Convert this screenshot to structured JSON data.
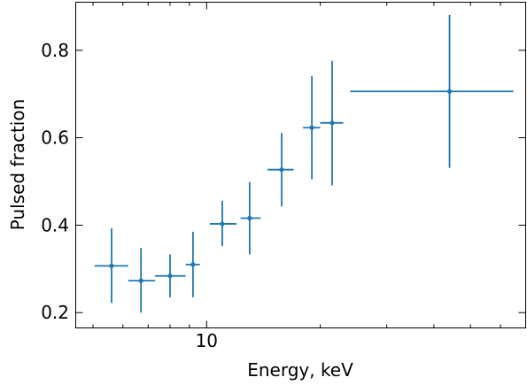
{
  "chart_data": {
    "type": "scatter",
    "title": "",
    "xlabel": "Energy, keV",
    "ylabel": "Pulsed fraction",
    "xscale": "log",
    "xlim": [
      4.5,
      70
    ],
    "ylim": [
      0.165,
      0.91
    ],
    "grid": false,
    "legend": "none",
    "color": "#1f77b4",
    "x_major_ticks": [
      10
    ],
    "x_major_tick_labels": [
      "10"
    ],
    "x_minor_ticks": [
      5,
      6,
      7,
      8,
      9,
      20,
      30,
      40,
      50,
      60
    ],
    "y_ticks": [
      0.2,
      0.4,
      0.6,
      0.8
    ],
    "y_tick_labels": [
      "0.2",
      "0.4",
      "0.6",
      "0.8"
    ],
    "points": [
      {
        "x": 5.6,
        "x_low": 5.05,
        "x_high": 6.2,
        "y": 0.307,
        "y_low": 0.222,
        "y_high": 0.393
      },
      {
        "x": 6.7,
        "x_low": 6.2,
        "x_high": 7.3,
        "y": 0.273,
        "y_low": 0.2,
        "y_high": 0.348
      },
      {
        "x": 8.0,
        "x_low": 7.3,
        "x_high": 8.8,
        "y": 0.284,
        "y_low": 0.235,
        "y_high": 0.333
      },
      {
        "x": 9.2,
        "x_low": 8.8,
        "x_high": 9.6,
        "y": 0.31,
        "y_low": 0.235,
        "y_high": 0.385
      },
      {
        "x": 11.0,
        "x_low": 10.2,
        "x_high": 12.0,
        "y": 0.403,
        "y_low": 0.352,
        "y_high": 0.456
      },
      {
        "x": 13.0,
        "x_low": 12.3,
        "x_high": 13.9,
        "y": 0.416,
        "y_low": 0.333,
        "y_high": 0.499
      },
      {
        "x": 15.8,
        "x_low": 14.5,
        "x_high": 17.0,
        "y": 0.527,
        "y_low": 0.443,
        "y_high": 0.611
      },
      {
        "x": 19.0,
        "x_low": 18.0,
        "x_high": 20.0,
        "y": 0.623,
        "y_low": 0.505,
        "y_high": 0.741
      },
      {
        "x": 21.5,
        "x_low": 20.0,
        "x_high": 23.0,
        "y": 0.634,
        "y_low": 0.491,
        "y_high": 0.776
      },
      {
        "x": 44.0,
        "x_low": 24.0,
        "x_high": 65.0,
        "y": 0.706,
        "y_low": 0.531,
        "y_high": 0.881
      }
    ]
  }
}
